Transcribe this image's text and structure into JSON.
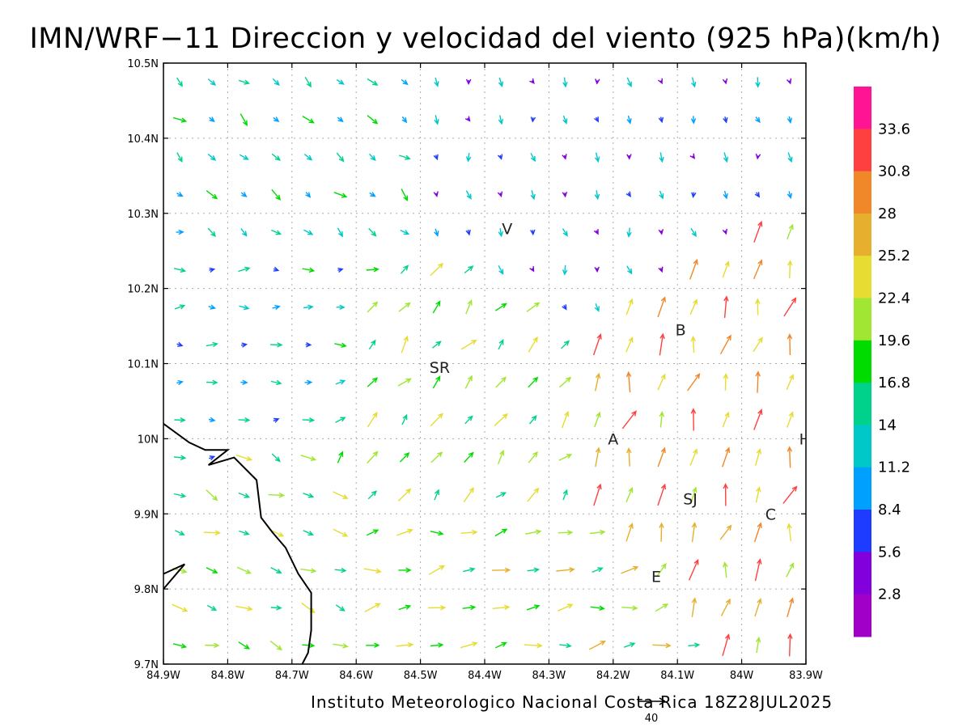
{
  "title": "IMN/WRF−11 Direccion y velocidad del viento (925 hPa)(km/h)",
  "footer": "Instituto Meteorologico Nacional Costa Rica  18Z28JUL2025",
  "reference_vector": {
    "label": "40",
    "speed": 40
  },
  "map": {
    "lon_range": [
      -84.9,
      -83.9
    ],
    "lat_range": [
      9.7,
      10.5
    ],
    "x_ticks": [
      {
        "lon": -84.9,
        "label": "84.9W"
      },
      {
        "lon": -84.8,
        "label": "84.8W"
      },
      {
        "lon": -84.7,
        "label": "84.7W"
      },
      {
        "lon": -84.6,
        "label": "84.6W"
      },
      {
        "lon": -84.5,
        "label": "84.5W"
      },
      {
        "lon": -84.4,
        "label": "84.4W"
      },
      {
        "lon": -84.3,
        "label": "84.3W"
      },
      {
        "lon": -84.2,
        "label": "84.2W"
      },
      {
        "lon": -84.1,
        "label": "84.1W"
      },
      {
        "lon": -84.0,
        "label": "84W"
      },
      {
        "lon": -83.9,
        "label": "83.9W"
      }
    ],
    "y_ticks": [
      {
        "lat": 9.7,
        "label": "9.7N"
      },
      {
        "lat": 9.8,
        "label": "9.8N"
      },
      {
        "lat": 9.9,
        "label": "9.9N"
      },
      {
        "lat": 10.0,
        "label": "10N"
      },
      {
        "lat": 10.1,
        "label": "10.1N"
      },
      {
        "lat": 10.2,
        "label": "10.2N"
      },
      {
        "lat": 10.3,
        "label": "10.3N"
      },
      {
        "lat": 10.4,
        "label": "10.4N"
      },
      {
        "lat": 10.5,
        "label": "10.5N"
      }
    ],
    "places": [
      {
        "label": "V",
        "lon": -84.365,
        "lat": 10.28
      },
      {
        "label": "B",
        "lon": -84.095,
        "lat": 10.145
      },
      {
        "label": "SR",
        "lon": -84.47,
        "lat": 10.095
      },
      {
        "label": "A",
        "lon": -84.2,
        "lat": 10.0
      },
      {
        "label": "I",
        "lon": -83.907,
        "lat": 10.0
      },
      {
        "label": "SJ",
        "lon": -84.08,
        "lat": 9.92
      },
      {
        "label": "C",
        "lon": -83.955,
        "lat": 9.9
      },
      {
        "label": "E",
        "lon": -84.133,
        "lat": 9.817
      }
    ],
    "coastline": [
      [
        -84.9,
        10.02
      ],
      [
        -84.86,
        9.995
      ],
      [
        -84.835,
        9.985
      ],
      [
        -84.8,
        9.985
      ],
      [
        -84.83,
        9.965
      ],
      [
        -84.79,
        9.975
      ],
      [
        -84.755,
        9.945
      ],
      [
        -84.748,
        9.895
      ],
      [
        -84.73,
        9.875
      ],
      [
        -84.71,
        9.855
      ],
      [
        -84.69,
        9.82
      ],
      [
        -84.67,
        9.795
      ],
      [
        -84.67,
        9.745
      ],
      [
        -84.675,
        9.715
      ],
      [
        -84.684,
        9.7
      ]
    ],
    "island": [
      [
        -84.9,
        9.82
      ],
      [
        -84.867,
        9.833
      ],
      [
        -84.9,
        9.8
      ]
    ]
  },
  "colorbar": {
    "levels": [
      "33.6",
      "30.8",
      "28",
      "25.2",
      "22.4",
      "19.6",
      "16.8",
      "14",
      "11.2",
      "8.4",
      "5.6",
      "2.8"
    ],
    "colors": [
      "#ff1493",
      "#ff4040",
      "#f08728",
      "#e6af2d",
      "#e6dc32",
      "#a0e632",
      "#00dc00",
      "#00d28c",
      "#00c8c8",
      "#00a0ff",
      "#1e3cff",
      "#8200dc",
      "#a000c8"
    ]
  },
  "chart_data": {
    "type": "vector_field",
    "title": "IMN/WRF−11 Direccion y velocidad del viento (925 hPa)(km/h)",
    "units": "km/h",
    "lon_range": [
      -84.9,
      -83.9
    ],
    "lat_range": [
      9.7,
      10.5
    ],
    "grid_step_deg": 0.05,
    "speed_levels": [
      2.8,
      5.6,
      8.4,
      11.2,
      14,
      16.8,
      19.6,
      22.4,
      25.2,
      28,
      30.8,
      33.6
    ],
    "reference_speed": 40,
    "regions": [
      {
        "lon": [
          -84.9,
          -84.7
        ],
        "lat": [
          9.95,
          10.3
        ],
        "dir_deg": 90,
        "speed": 12
      },
      {
        "lon": [
          -84.9,
          -84.65
        ],
        "lat": [
          9.7,
          9.95
        ],
        "dir_deg": 110,
        "speed": 19
      },
      {
        "lon": [
          -84.65,
          -84.2
        ],
        "lat": [
          9.9,
          10.2
        ],
        "dir_deg": 40,
        "speed": 20
      },
      {
        "lon": [
          -84.65,
          -84.2
        ],
        "lat": [
          9.7,
          9.9
        ],
        "dir_deg": 80,
        "speed": 21
      },
      {
        "lon": [
          -84.2,
          -83.9
        ],
        "lat": [
          9.95,
          10.15
        ],
        "dir_deg": 15,
        "speed": 27
      },
      {
        "lon": [
          -84.6,
          -83.9
        ],
        "lat": [
          10.2,
          10.5
        ],
        "dir_deg": 165,
        "speed": 9
      },
      {
        "lon": [
          -84.9,
          -84.6
        ],
        "lat": [
          10.3,
          10.5
        ],
        "dir_deg": 130,
        "speed": 14
      }
    ]
  }
}
